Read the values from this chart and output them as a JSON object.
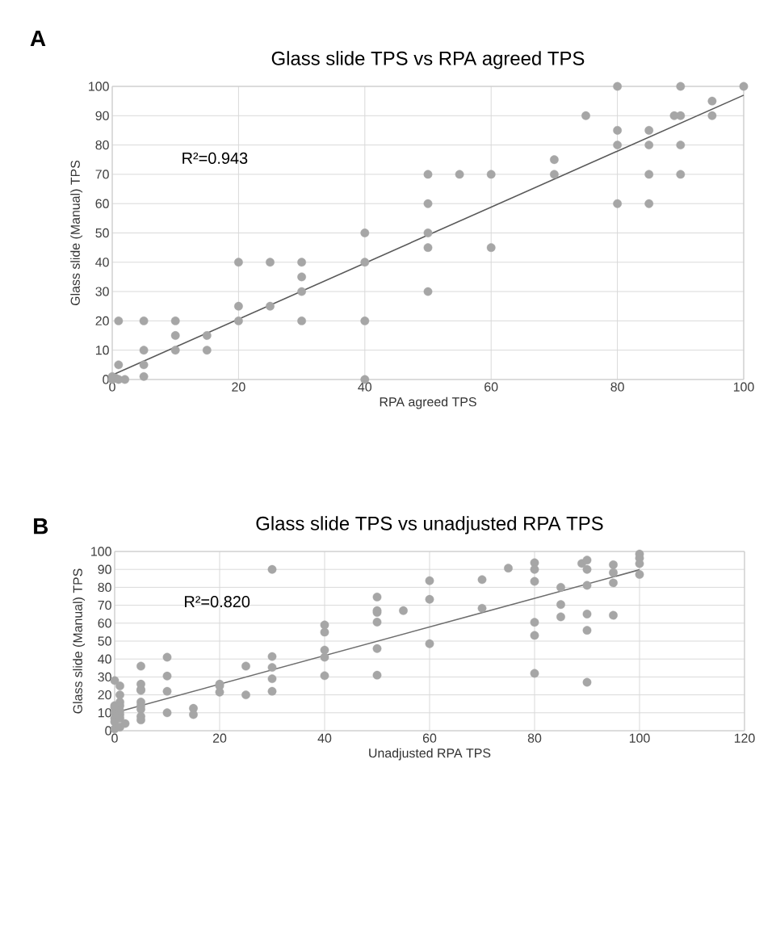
{
  "chart_data": [
    {
      "type": "scatter",
      "title": "Glass slide TPS vs RPA agreed TPS",
      "xlabel": "RPA agreed TPS",
      "ylabel": "Glass slide (Manual) TPS",
      "annotations": [
        "A",
        "R²=0.943"
      ],
      "xlim": [
        0,
        100
      ],
      "ylim": [
        0,
        100
      ],
      "xticks": [
        0,
        20,
        40,
        60,
        80,
        100
      ],
      "yticks": [
        0,
        10,
        20,
        30,
        40,
        50,
        60,
        70,
        80,
        90,
        100
      ],
      "grid": true,
      "series": [
        {
          "marker": "circle",
          "color": "#a6a6a6",
          "x": [
            0,
            0,
            0.5,
            1,
            2,
            1,
            1,
            5,
            5,
            5,
            5,
            10,
            10,
            10,
            15,
            15,
            20,
            20,
            20,
            25,
            25,
            30,
            30,
            30,
            30,
            40,
            40,
            40,
            40,
            50,
            50,
            50,
            50,
            50,
            55,
            60,
            60,
            70,
            70,
            75,
            80,
            80,
            80,
            80,
            85,
            85,
            85,
            85,
            89,
            90,
            90,
            90,
            90,
            95,
            95,
            100
          ],
          "values": [
            0,
            1,
            0.5,
            0,
            0,
            5,
            20,
            20,
            10,
            5,
            1,
            20,
            15,
            10,
            15,
            10,
            40,
            25,
            20,
            40,
            25,
            40,
            35,
            30,
            20,
            50,
            40,
            20,
            0,
            70,
            60,
            50,
            45,
            30,
            70,
            70,
            45,
            75,
            70,
            90,
            100,
            85,
            80,
            60,
            85,
            80,
            70,
            60,
            90,
            100,
            90,
            80,
            70,
            95,
            90,
            100
          ]
        },
        {
          "type": "line",
          "marker": "none",
          "color": "#595959",
          "x": [
            0,
            100
          ],
          "values": [
            1.5,
            97
          ]
        }
      ]
    },
    {
      "type": "scatter",
      "title": "Glass slide TPS vs unadjusted RPA TPS",
      "xlabel": "Unadjusted RPA TPS",
      "ylabel": "Glass slide (Manual) TPS",
      "annotations": [
        "B",
        "R²=0.820"
      ],
      "xlim": [
        0,
        120
      ],
      "ylim": [
        0,
        100
      ],
      "xticks": [
        0,
        20,
        40,
        60,
        80,
        100,
        120
      ],
      "yticks": [
        0,
        10,
        20,
        30,
        40,
        50,
        60,
        70,
        80,
        90,
        100
      ],
      "grid": true,
      "series": [
        {
          "marker": "circle",
          "color": "#a6a6a6",
          "x": [
            0,
            0,
            0,
            0,
            0,
            0,
            0,
            1,
            1,
            1,
            1,
            1,
            1,
            1,
            1,
            2,
            5,
            5,
            5,
            5,
            5,
            5,
            5,
            5,
            5,
            10,
            10,
            10,
            10,
            15,
            15,
            20,
            20,
            20,
            25,
            25,
            30,
            30,
            30,
            30,
            30,
            40,
            40,
            40,
            40,
            40,
            50,
            50,
            50,
            50,
            50,
            50,
            55,
            60,
            60,
            60,
            70,
            70,
            75,
            80,
            80,
            80,
            80,
            80,
            80,
            85,
            85,
            85,
            89,
            90,
            90,
            90,
            90,
            90,
            90,
            95,
            95,
            95,
            95,
            100,
            100,
            100,
            100
          ],
          "values": [
            28,
            14,
            13,
            10,
            7,
            5,
            1,
            25,
            20,
            16,
            14,
            11,
            9,
            7,
            2,
            4,
            36,
            26,
            23,
            22.5,
            16,
            14,
            12,
            8,
            6,
            41,
            30.5,
            22,
            10,
            12.5,
            9,
            26,
            25,
            21.5,
            36,
            20,
            90,
            41.4,
            35.3,
            29,
            22,
            59,
            55,
            45,
            41,
            30.7,
            74.6,
            67,
            66,
            60.6,
            45.8,
            31,
            67,
            83.7,
            73.3,
            48.5,
            84.3,
            68.3,
            90.7,
            93.7,
            90,
            83.3,
            60.5,
            53.2,
            32,
            80,
            70.4,
            63.5,
            93.3,
            95.2,
            90,
            81.1,
            65.1,
            56,
            27,
            92.6,
            88.2,
            82.5,
            64.4,
            98.6,
            96.3,
            93.2,
            87.2
          ]
        },
        {
          "type": "line",
          "marker": "none",
          "color": "#6d6d6d",
          "x": [
            0,
            100
          ],
          "values": [
            10,
            89.8
          ]
        }
      ]
    }
  ]
}
